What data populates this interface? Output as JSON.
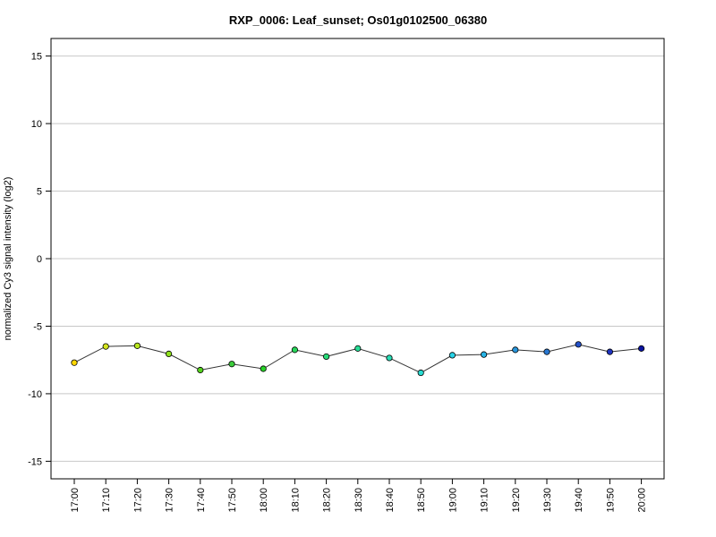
{
  "chart_data": {
    "type": "line",
    "title": "RXP_0006: Leaf_sunset; Os01g0102500_06380",
    "xlabel": "",
    "ylabel": "normalized Cy3 signal intensity (log2)",
    "ylim": [
      -16.3,
      16.3
    ],
    "yticks": [
      15,
      10,
      5,
      0,
      -5,
      -10,
      -15
    ],
    "grid": "horizontal",
    "categories": [
      "17:00",
      "17:10",
      "17:20",
      "17:30",
      "17:40",
      "17:50",
      "18:00",
      "18:10",
      "18:20",
      "18:30",
      "18:40",
      "18:50",
      "19:00",
      "19:10",
      "19:20",
      "19:30",
      "19:40",
      "19:50",
      "20:00"
    ],
    "series": [
      {
        "values": [
          -7.7,
          -6.5,
          -6.45,
          -7.05,
          -8.25,
          -7.8,
          -8.15,
          -6.75,
          -7.25,
          -6.65,
          -7.35,
          -8.45,
          -7.15,
          -7.1,
          -6.75,
          -6.9,
          -6.35,
          -6.9,
          -6.65
        ],
        "colors": [
          "#ffd700",
          "#d4e61e",
          "#b8e61e",
          "#8ee01e",
          "#55d21e",
          "#3ccd3c",
          "#28d228",
          "#28d75a",
          "#28dc78",
          "#28dc96",
          "#28dcb4",
          "#28dcd2",
          "#28d2e6",
          "#28b4e6",
          "#2896dc",
          "#2878d2",
          "#2350c8",
          "#1e32be",
          "#0a14a0"
        ]
      }
    ]
  }
}
